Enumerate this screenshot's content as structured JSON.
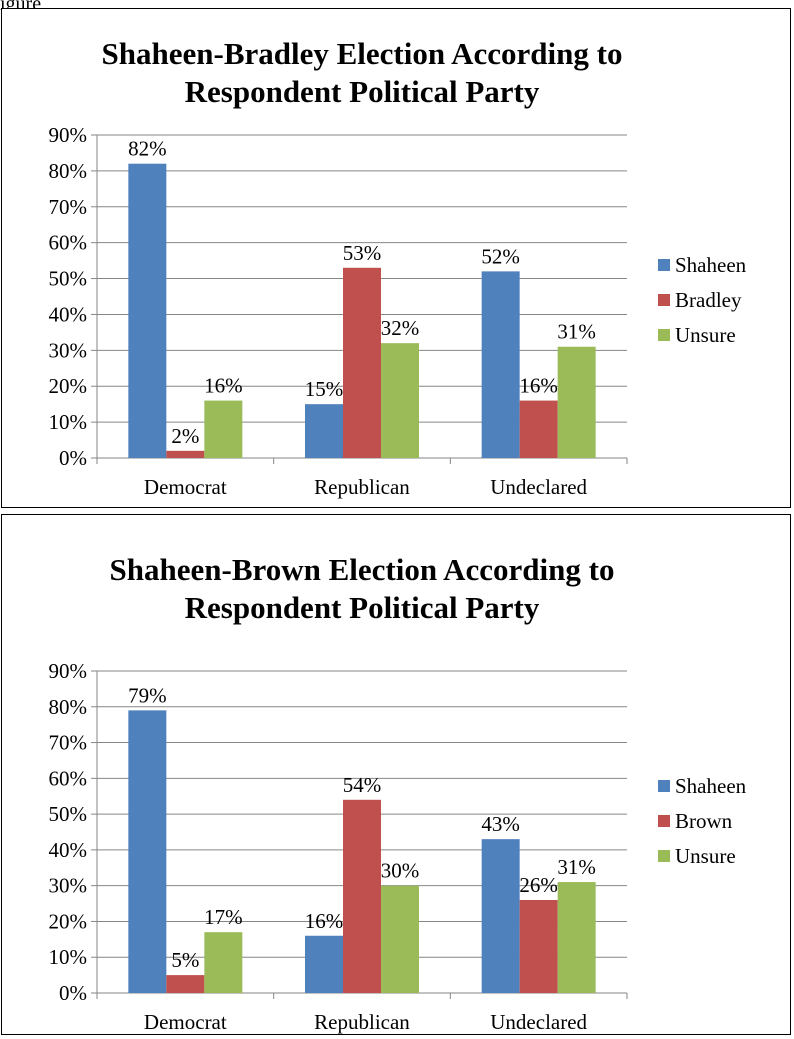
{
  "page": {
    "figure_label_partial": "igure"
  },
  "chart_data": [
    {
      "type": "bar",
      "title_line1": "Shaheen-Bradley Election According to",
      "title_line2": "Respondent Political Party",
      "categories": [
        "Democrat",
        "Republican",
        "Undeclared"
      ],
      "series": [
        {
          "name": "Shaheen",
          "values": [
            82,
            15,
            52
          ],
          "labels": [
            "82%",
            "15%",
            "52%"
          ],
          "color": "#4F81BD"
        },
        {
          "name": "Bradley",
          "values": [
            2,
            53,
            16
          ],
          "labels": [
            "2%",
            "53%",
            "16%"
          ],
          "color": "#C0504D"
        },
        {
          "name": "Unsure",
          "values": [
            16,
            32,
            31
          ],
          "labels": [
            "16%",
            "32%",
            "31%"
          ],
          "color": "#9BBB59"
        }
      ],
      "yticks": [
        "0%",
        "10%",
        "20%",
        "30%",
        "40%",
        "50%",
        "60%",
        "70%",
        "80%",
        "90%"
      ],
      "ylim": [
        0,
        90
      ],
      "grid": true,
      "legend": "right"
    },
    {
      "type": "bar",
      "title_line1": "Shaheen-Brown Election According to",
      "title_line2": "Respondent Political Party",
      "categories": [
        "Democrat",
        "Republican",
        "Undeclared"
      ],
      "series": [
        {
          "name": "Shaheen",
          "values": [
            79,
            16,
            43
          ],
          "labels": [
            "79%",
            "16%",
            "43%"
          ],
          "color": "#4F81BD"
        },
        {
          "name": "Brown",
          "values": [
            5,
            54,
            26
          ],
          "labels": [
            "5%",
            "54%",
            "26%"
          ],
          "color": "#C0504D"
        },
        {
          "name": "Unsure",
          "values": [
            17,
            30,
            31
          ],
          "labels": [
            "17%",
            "30%",
            "31%"
          ],
          "color": "#9BBB59"
        }
      ],
      "yticks": [
        "0%",
        "10%",
        "20%",
        "30%",
        "40%",
        "50%",
        "60%",
        "70%",
        "80%",
        "90%"
      ],
      "ylim": [
        0,
        90
      ],
      "grid": true,
      "legend": "right"
    }
  ]
}
